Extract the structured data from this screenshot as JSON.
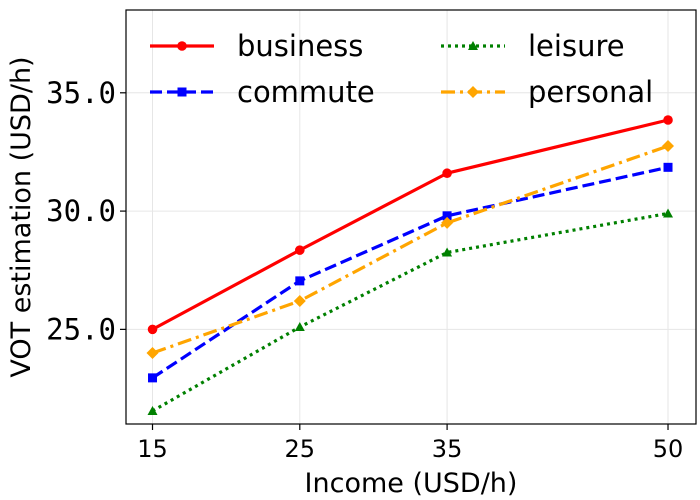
{
  "chart_data": {
    "type": "line",
    "xlabel": "Income (USD/h)",
    "ylabel": "VOT estimation (USD/h)",
    "x": [
      15,
      25,
      35,
      50
    ],
    "x_tick_labels": [
      "15",
      "25",
      "35",
      "50"
    ],
    "xlim": [
      13.2,
      51.9
    ],
    "ylim": [
      21.0,
      38.5
    ],
    "y_ticks": [
      25.0,
      30.0,
      35.0
    ],
    "y_tick_labels": [
      "25.0",
      "30.0",
      "35.0"
    ],
    "grid": true,
    "legend": {
      "placement": "top",
      "columns": 2
    },
    "series": [
      {
        "name": "business",
        "values": [
          25.0,
          28.35,
          31.6,
          33.85
        ],
        "color": "#ff0000",
        "dash": "solid",
        "marker": "circle"
      },
      {
        "name": "commute",
        "values": [
          22.95,
          27.05,
          29.8,
          31.85
        ],
        "color": "#0000ff",
        "dash": "dashed",
        "marker": "square"
      },
      {
        "name": "leisure",
        "values": [
          21.55,
          25.1,
          28.25,
          29.9
        ],
        "color": "#008000",
        "dash": "dotted",
        "marker": "triangle"
      },
      {
        "name": "personal",
        "values": [
          24.0,
          26.2,
          29.5,
          32.75
        ],
        "color": "#ffa500",
        "dash": "dashdot",
        "marker": "diamond"
      }
    ]
  }
}
